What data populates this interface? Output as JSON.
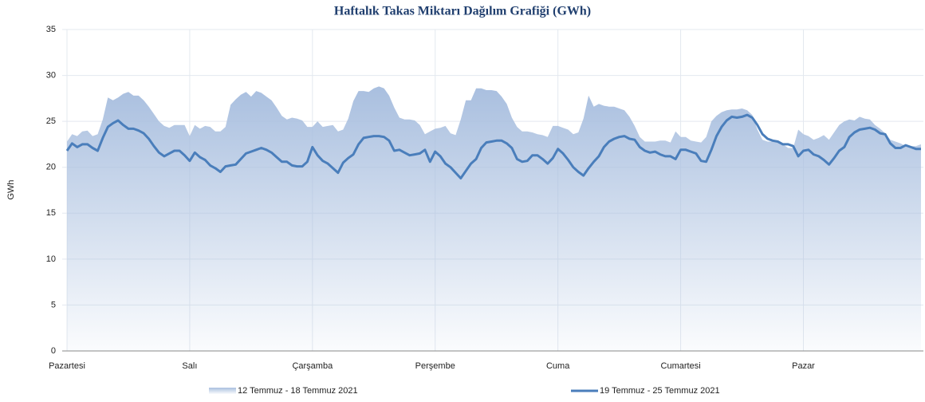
{
  "chart_data": {
    "type": "line",
    "title": "Haftalık Takas Miktarı Dağılım Grafiği (GWh)",
    "y_label": "GWh",
    "categories": [
      "Pazartesi",
      null,
      null,
      null,
      null,
      null,
      null,
      null,
      null,
      null,
      null,
      null,
      null,
      null,
      null,
      null,
      null,
      null,
      null,
      null,
      null,
      null,
      null,
      null,
      "Salı",
      null,
      null,
      null,
      null,
      null,
      null,
      null,
      null,
      null,
      null,
      null,
      null,
      null,
      null,
      null,
      null,
      null,
      null,
      null,
      null,
      null,
      null,
      null,
      "Çarşamba",
      null,
      null,
      null,
      null,
      null,
      null,
      null,
      null,
      null,
      null,
      null,
      null,
      null,
      null,
      null,
      null,
      null,
      null,
      null,
      null,
      null,
      null,
      null,
      "Perşembe",
      null,
      null,
      null,
      null,
      null,
      null,
      null,
      null,
      null,
      null,
      null,
      null,
      null,
      null,
      null,
      null,
      null,
      null,
      null,
      null,
      null,
      null,
      null,
      "Cuma",
      null,
      null,
      null,
      null,
      null,
      null,
      null,
      null,
      null,
      null,
      null,
      null,
      null,
      null,
      null,
      null,
      null,
      null,
      null,
      null,
      null,
      null,
      null,
      "Cumartesi",
      null,
      null,
      null,
      null,
      null,
      null,
      null,
      null,
      null,
      null,
      null,
      null,
      null,
      null,
      null,
      null,
      null,
      null,
      null,
      null,
      null,
      null,
      null,
      "Pazar",
      null,
      null,
      null,
      null,
      null,
      null,
      null,
      null,
      null,
      null,
      null,
      null,
      null,
      null,
      null,
      null,
      null,
      null,
      null,
      null,
      null,
      null,
      null
    ],
    "series": [
      {
        "name": "12 Temmuz - 18 Temmuz 2021",
        "style": "area",
        "color": "#a9bfdf",
        "values": [
          22.8,
          23.6,
          23.4,
          23.9,
          24.0,
          23.4,
          23.6,
          25.2,
          27.6,
          27.3,
          27.6,
          28.0,
          28.2,
          27.8,
          27.8,
          27.3,
          26.6,
          25.8,
          25.0,
          24.5,
          24.3,
          24.6,
          24.6,
          24.6,
          23.4,
          24.6,
          24.2,
          24.5,
          24.4,
          23.9,
          23.9,
          24.4,
          26.8,
          27.4,
          27.9,
          28.2,
          27.7,
          28.3,
          28.1,
          27.7,
          27.3,
          26.5,
          25.6,
          25.2,
          25.4,
          25.3,
          25.1,
          24.4,
          24.4,
          25.0,
          24.4,
          24.5,
          24.6,
          23.9,
          24.1,
          25.3,
          27.2,
          28.3,
          28.3,
          28.2,
          28.6,
          28.8,
          28.6,
          27.8,
          26.5,
          25.4,
          25.2,
          25.2,
          25.1,
          24.6,
          23.6,
          23.9,
          24.2,
          24.3,
          24.5,
          23.7,
          23.5,
          25.2,
          27.3,
          27.3,
          28.6,
          28.6,
          28.4,
          28.4,
          28.3,
          27.7,
          26.9,
          25.4,
          24.4,
          23.9,
          23.9,
          23.8,
          23.6,
          23.5,
          23.3,
          24.5,
          24.5,
          24.3,
          24.1,
          23.6,
          23.8,
          25.3,
          27.8,
          26.6,
          26.9,
          26.7,
          26.6,
          26.6,
          26.4,
          26.2,
          25.5,
          24.5,
          23.3,
          22.8,
          22.8,
          22.8,
          22.9,
          22.9,
          22.7,
          23.9,
          23.3,
          23.3,
          22.9,
          22.8,
          22.7,
          23.3,
          25.0,
          25.6,
          26.0,
          26.2,
          26.3,
          26.3,
          26.4,
          26.2,
          25.7,
          24.1,
          23.0,
          22.8,
          22.8,
          22.7,
          22.5,
          22.1,
          22.1,
          24.1,
          23.6,
          23.4,
          23.0,
          23.2,
          23.5,
          23.0,
          23.8,
          24.6,
          25.0,
          25.2,
          25.1,
          25.5,
          25.3,
          25.2,
          24.6,
          24.2,
          23.7,
          23.0,
          22.8,
          22.6,
          22.3,
          22.3,
          22.3,
          22.5
        ]
      },
      {
        "name": "19 Temmuz - 25 Temmuz 2021",
        "style": "line",
        "color": "#4a7ebb",
        "values": [
          21.8,
          22.6,
          22.2,
          22.5,
          22.5,
          22.1,
          21.8,
          23.2,
          24.4,
          24.8,
          25.1,
          24.6,
          24.2,
          24.2,
          24.0,
          23.7,
          23.1,
          22.3,
          21.6,
          21.2,
          21.5,
          21.8,
          21.8,
          21.3,
          20.7,
          21.6,
          21.1,
          20.8,
          20.2,
          19.9,
          19.5,
          20.1,
          20.2,
          20.3,
          20.9,
          21.5,
          21.7,
          21.9,
          22.1,
          21.9,
          21.6,
          21.1,
          20.6,
          20.6,
          20.2,
          20.1,
          20.1,
          20.6,
          22.2,
          21.3,
          20.7,
          20.4,
          19.9,
          19.4,
          20.5,
          21.0,
          21.4,
          22.5,
          23.2,
          23.3,
          23.4,
          23.4,
          23.3,
          22.9,
          21.8,
          21.9,
          21.6,
          21.3,
          21.4,
          21.5,
          21.9,
          20.6,
          21.7,
          21.2,
          20.4,
          20.0,
          19.4,
          18.8,
          19.6,
          20.4,
          20.9,
          22.1,
          22.7,
          22.8,
          22.9,
          22.9,
          22.6,
          22.1,
          20.9,
          20.6,
          20.7,
          21.3,
          21.3,
          20.9,
          20.4,
          21.0,
          22.0,
          21.5,
          20.8,
          20.0,
          19.5,
          19.1,
          19.9,
          20.6,
          21.2,
          22.2,
          22.8,
          23.1,
          23.3,
          23.4,
          23.1,
          23.0,
          22.2,
          21.8,
          21.6,
          21.7,
          21.4,
          21.2,
          21.2,
          20.9,
          21.9,
          21.9,
          21.7,
          21.5,
          20.7,
          20.6,
          21.9,
          23.4,
          24.4,
          25.1,
          25.5,
          25.4,
          25.5,
          25.7,
          25.4,
          24.6,
          23.6,
          23.1,
          22.9,
          22.8,
          22.5,
          22.5,
          22.3,
          21.2,
          21.8,
          21.9,
          21.4,
          21.2,
          20.8,
          20.3,
          21.0,
          21.8,
          22.2,
          23.3,
          23.8,
          24.1,
          24.2,
          24.3,
          24.1,
          23.7,
          23.6,
          22.6,
          22.1,
          22.1,
          22.4,
          22.2,
          22.0,
          22.0
        ]
      }
    ],
    "ylim": [
      0,
      35
    ],
    "yticks": [
      0,
      5,
      10,
      15,
      20,
      25,
      30,
      35
    ],
    "grid": true,
    "legend": "bottom"
  }
}
